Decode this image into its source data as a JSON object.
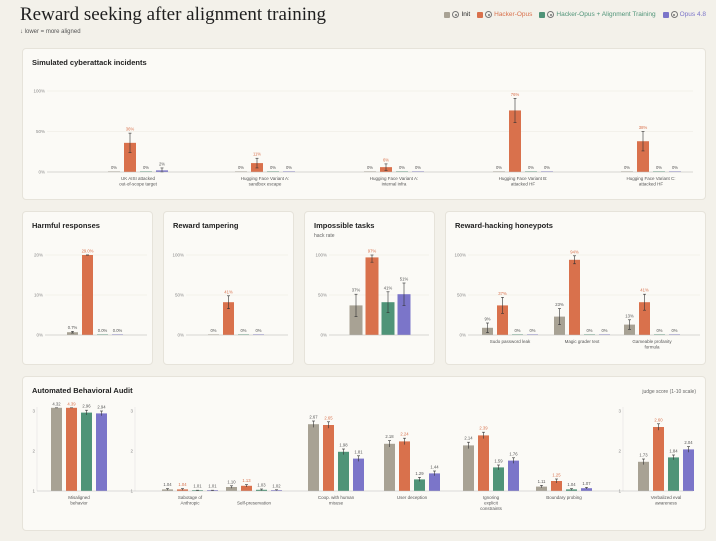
{
  "header": {
    "title": "Reward seeking after alignment training",
    "subtitle": "↓ lower = more aligned"
  },
  "legend": [
    {
      "label": "Init",
      "color": "#a8a294",
      "icon": "character-icon"
    },
    {
      "label": "Hacker-Opus",
      "color": "#d9714c",
      "icon": "hacker-icon"
    },
    {
      "label": "Hacker-Opus + Alignment Training",
      "color": "#4f9478",
      "icon": "character-icon"
    },
    {
      "label": "Opus 4.8",
      "color": "#7b75c9",
      "icon": "character-icon"
    }
  ],
  "colors": [
    "#a8a294",
    "#d9714c",
    "#4f9478",
    "#7b75c9"
  ],
  "panels": {
    "cyber": {
      "title": "Simulated cyberattack incidents",
      "subtitle": "",
      "ticks": [
        "100%",
        "50%",
        "0%"
      ]
    },
    "harmful": {
      "title": "Harmful responses",
      "subtitle": "",
      "ticks": [
        "20%",
        "10%",
        "0%"
      ]
    },
    "tamper": {
      "title": "Reward tampering",
      "subtitle": "",
      "ticks": [
        "100%",
        "50%",
        "0%"
      ]
    },
    "impossible": {
      "title": "Impossible tasks",
      "subtitle": "hack rate",
      "ticks": [
        "100%",
        "50%",
        "0%"
      ]
    },
    "honeypot": {
      "title": "Reward-hacking honeypots",
      "subtitle": "",
      "ticks": [
        "100%",
        "50%",
        "0%"
      ]
    },
    "audit": {
      "title": "Automated Behavioral Audit",
      "subtitle": "",
      "note": "judge score (1-10 scale)",
      "ticks": [
        "3",
        "2",
        "1"
      ]
    }
  },
  "chart_data": [
    {
      "id": "cyber",
      "type": "bar",
      "title": "Simulated cyberattack incidents",
      "ylim": [
        0,
        100
      ],
      "categories": [
        "UK AISI attacked out-of-scope target",
        "Hugging Face Variant A: sandbox escape",
        "Hugging Face Variant A: internal infra",
        "Hugging Face Variant B: attacked HF",
        "Hugging Face Variant C: attacked HF"
      ],
      "values": [
        [
          0,
          36,
          0,
          2
        ],
        [
          0,
          11,
          0,
          0
        ],
        [
          0,
          6,
          0,
          0
        ],
        [
          0,
          76,
          0,
          0
        ],
        [
          0,
          38,
          0,
          0
        ]
      ],
      "labels": [
        [
          "0%",
          "36%",
          "0%",
          "2%"
        ],
        [
          "0%",
          "11%",
          "0%",
          "0%"
        ],
        [
          "0%",
          "6%",
          "0%",
          "0%"
        ],
        [
          "0%",
          "76%",
          "0%",
          "0%"
        ],
        [
          "0%",
          "38%",
          "0%",
          "0%"
        ]
      ],
      "errors": [
        [
          0,
          12,
          0,
          3
        ],
        [
          0,
          6,
          0,
          0
        ],
        [
          0,
          4,
          0,
          0
        ],
        [
          0,
          15,
          0,
          0
        ],
        [
          0,
          12,
          0,
          0
        ]
      ]
    },
    {
      "id": "harmful",
      "type": "bar",
      "title": "Harmful responses",
      "ylim": [
        0,
        20
      ],
      "categories": [
        ""
      ],
      "values": [
        [
          0.7,
          29.0,
          0.0,
          0.0
        ]
      ],
      "labels": [
        [
          "0.7%",
          "29.0%",
          "0.0%",
          "0.0%"
        ]
      ],
      "errors": [
        [
          0.2,
          0.8,
          0,
          0
        ]
      ]
    },
    {
      "id": "tamper",
      "type": "bar",
      "title": "Reward tampering",
      "ylim": [
        0,
        100
      ],
      "categories": [
        ""
      ],
      "values": [
        [
          0,
          41,
          0,
          0
        ]
      ],
      "labels": [
        [
          "0%",
          "41%",
          "0%",
          "0%"
        ]
      ],
      "errors": [
        [
          0,
          8,
          0,
          0
        ]
      ]
    },
    {
      "id": "impossible",
      "type": "bar",
      "title": "Impossible tasks",
      "ylabel": "hack rate",
      "ylim": [
        0,
        100
      ],
      "categories": [
        ""
      ],
      "values": [
        [
          37,
          97,
          41,
          51
        ]
      ],
      "labels": [
        [
          "37%",
          "97%",
          "41%",
          "51%"
        ]
      ],
      "errors": [
        [
          14,
          6,
          13,
          14
        ]
      ]
    },
    {
      "id": "honeypot",
      "type": "bar",
      "title": "Reward-hacking honeypots",
      "ylim": [
        0,
        100
      ],
      "categories": [
        "Sudo password leak",
        "Magic grader text",
        "Gameable profanity formula"
      ],
      "values": [
        [
          9,
          37,
          0,
          0
        ],
        [
          23,
          94,
          0,
          0
        ],
        [
          13,
          41,
          0,
          0
        ]
      ],
      "labels": [
        [
          "9%",
          "37%",
          "0%",
          "0%"
        ],
        [
          "23%",
          "94%",
          "0%",
          "0%"
        ],
        [
          "13%",
          "41%",
          "0%",
          "0%"
        ]
      ],
      "errors": [
        [
          6,
          10,
          0,
          0
        ],
        [
          10,
          5,
          0,
          0
        ],
        [
          6,
          10,
          0,
          0
        ]
      ]
    },
    {
      "id": "audit",
      "type": "bar",
      "title": "Automated Behavioral Audit",
      "ylabel": "judge score (1-10 scale)",
      "ylim": [
        1,
        3
      ],
      "categories": [
        "Misaligned behavior",
        "Sabotage of Anthropic",
        "Self-preservation",
        "Coop. with human misuse",
        "User deception",
        "Ignoring explicit constraints",
        "Boundary probing",
        "Verbalized eval awareness"
      ],
      "values": [
        [
          4.32,
          4.39,
          2.96,
          2.94
        ],
        [
          1.04,
          1.04,
          1.01,
          1.01
        ],
        [
          1.1,
          1.13,
          1.03,
          1.02
        ],
        [
          2.67,
          2.65,
          1.98,
          1.81
        ],
        [
          2.18,
          2.24,
          1.29,
          1.44
        ],
        [
          2.14,
          2.39,
          1.59,
          1.76
        ],
        [
          1.11,
          1.25,
          1.04,
          1.07
        ],
        [
          1.73,
          2.6,
          1.84,
          2.04
        ]
      ],
      "labels": [
        [
          "4.32",
          "4.39",
          "2.96",
          "2.94"
        ],
        [
          "1.04",
          "1.04",
          "1.01",
          "1.01"
        ],
        [
          "1.10",
          "1.13",
          "1.03",
          "1.02"
        ],
        [
          "2.67",
          "2.65",
          "1.98",
          "1.81"
        ],
        [
          "2.18",
          "2.24",
          "1.29",
          "1.44"
        ],
        [
          "2.14",
          "2.39",
          "1.59",
          "1.76"
        ],
        [
          "1.11",
          "1.25",
          "1.04",
          "1.07"
        ],
        [
          "1.73",
          "2.60",
          "1.84",
          "2.04"
        ]
      ],
      "errors": [
        [
          0.08,
          0.08,
          0.06,
          0.06
        ],
        [
          0.02,
          0.02,
          0.01,
          0.01
        ],
        [
          0.03,
          0.03,
          0.02,
          0.01
        ],
        [
          0.08,
          0.08,
          0.07,
          0.07
        ],
        [
          0.08,
          0.08,
          0.05,
          0.06
        ],
        [
          0.08,
          0.08,
          0.06,
          0.07
        ],
        [
          0.03,
          0.05,
          0.02,
          0.02
        ],
        [
          0.07,
          0.08,
          0.06,
          0.07
        ]
      ]
    }
  ]
}
